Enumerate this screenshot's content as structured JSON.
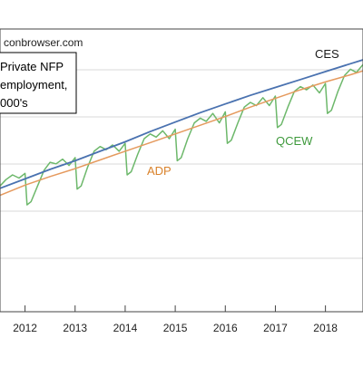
{
  "chart_data": {
    "type": "line",
    "source": "conbrowser.com",
    "note_lines": [
      "Private NFP",
      "employment,",
      "000's"
    ],
    "x_ticks": [
      "2012",
      "2013",
      "2014",
      "2015",
      "2016",
      "2017",
      "2018"
    ],
    "x_range": [
      2011.5,
      2018.75
    ],
    "y_range": [
      0,
      1
    ],
    "grid": "horizontal",
    "series": [
      {
        "name": "CES",
        "color": "#4a72b0",
        "x": [
          2011.5,
          2012.0,
          2012.5,
          2013.0,
          2013.5,
          2014.0,
          2014.5,
          2015.0,
          2015.5,
          2016.0,
          2016.5,
          2017.0,
          2017.5,
          2018.0,
          2018.5,
          2018.75
        ],
        "y": [
          0.185,
          0.245,
          0.305,
          0.36,
          0.42,
          0.48,
          0.545,
          0.605,
          0.665,
          0.72,
          0.775,
          0.825,
          0.875,
          0.925,
          0.975,
          1.0
        ]
      },
      {
        "name": "ADP",
        "color": "#e59a5e",
        "x": [
          2011.5,
          2012.0,
          2012.5,
          2013.0,
          2013.5,
          2014.0,
          2014.5,
          2015.0,
          2015.5,
          2016.0,
          2016.5,
          2017.0,
          2017.5,
          2018.0,
          2018.5,
          2018.75
        ],
        "y": [
          0.14,
          0.205,
          0.26,
          0.31,
          0.365,
          0.42,
          0.475,
          0.53,
          0.585,
          0.64,
          0.7,
          0.755,
          0.81,
          0.86,
          0.905,
          0.93
        ]
      },
      {
        "name": "QCEW",
        "color": "#6db86b",
        "x": [
          2011.5,
          2011.62,
          2011.75,
          2011.88,
          2012.0,
          2012.04,
          2012.12,
          2012.25,
          2012.38,
          2012.5,
          2012.62,
          2012.75,
          2012.88,
          2013.0,
          2013.04,
          2013.12,
          2013.25,
          2013.38,
          2013.5,
          2013.62,
          2013.75,
          2013.88,
          2014.0,
          2014.04,
          2014.12,
          2014.25,
          2014.38,
          2014.5,
          2014.62,
          2014.75,
          2014.88,
          2015.0,
          2015.04,
          2015.12,
          2015.25,
          2015.38,
          2015.5,
          2015.62,
          2015.75,
          2015.88,
          2016.0,
          2016.04,
          2016.12,
          2016.25,
          2016.38,
          2016.5,
          2016.62,
          2016.75,
          2016.88,
          2017.0,
          2017.04,
          2017.12,
          2017.25,
          2017.38,
          2017.5,
          2017.62,
          2017.75,
          2017.88,
          2018.0,
          2018.04,
          2018.12,
          2018.25,
          2018.38,
          2018.5,
          2018.62,
          2018.75
        ],
        "y": [
          0.2,
          0.24,
          0.27,
          0.25,
          0.28,
          0.08,
          0.1,
          0.2,
          0.3,
          0.35,
          0.34,
          0.37,
          0.33,
          0.38,
          0.18,
          0.2,
          0.32,
          0.42,
          0.45,
          0.43,
          0.46,
          0.42,
          0.47,
          0.27,
          0.29,
          0.4,
          0.5,
          0.53,
          0.51,
          0.55,
          0.5,
          0.56,
          0.36,
          0.38,
          0.5,
          0.6,
          0.63,
          0.61,
          0.66,
          0.6,
          0.67,
          0.47,
          0.49,
          0.6,
          0.7,
          0.73,
          0.71,
          0.76,
          0.71,
          0.77,
          0.57,
          0.59,
          0.7,
          0.8,
          0.83,
          0.81,
          0.84,
          0.79,
          0.85,
          0.66,
          0.68,
          0.8,
          0.9,
          0.94,
          0.92,
          0.97
        ]
      }
    ]
  }
}
